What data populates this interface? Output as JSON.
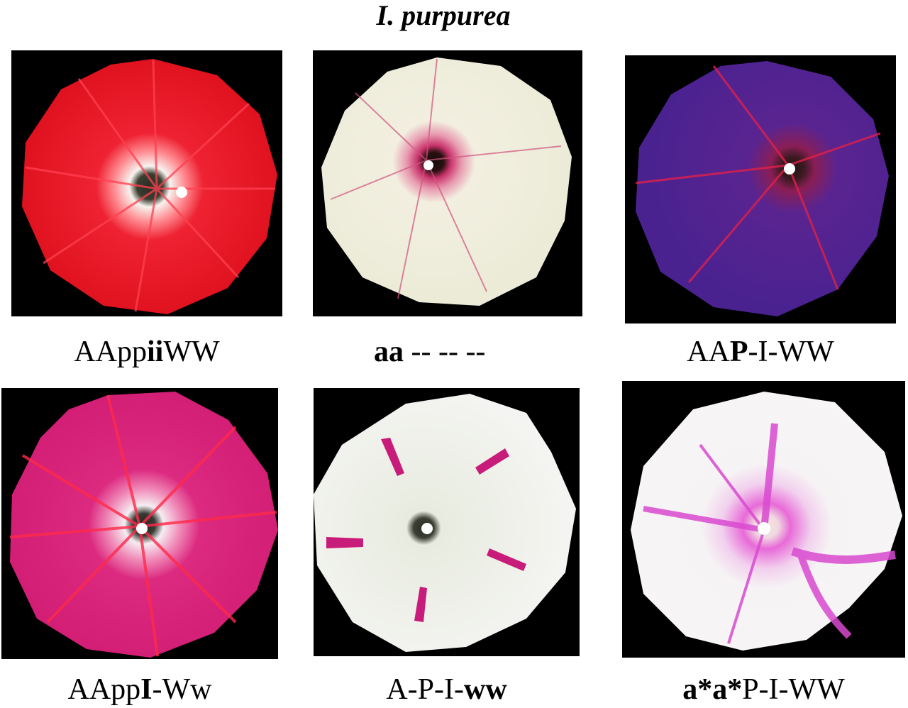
{
  "figure": {
    "title": "I. purpurea"
  },
  "panels": [
    {
      "caption_parts": [
        {
          "text": "AApp",
          "bold": false
        },
        {
          "text": "ii",
          "bold": true
        },
        {
          "text": "WW",
          "bold": false
        }
      ],
      "petal_color": "#e8172b",
      "throat_color": "#f7f3ef",
      "center_color": "#2b2e22",
      "ray_color": "#ff3a4a",
      "description_icon": "red-morning-glory-flower"
    },
    {
      "caption_parts": [
        {
          "text": "aa",
          "bold": true
        },
        {
          "text": " -- -- --",
          "bold": false
        }
      ],
      "petal_color": "#f2f1e3",
      "throat_color": "#c8326a",
      "center_color": "#1a0f0f",
      "ray_color": "#d05580",
      "description_icon": "white-morning-glory-flower"
    },
    {
      "caption_parts": [
        {
          "text": "AA",
          "bold": false
        },
        {
          "text": "P",
          "bold": true
        },
        {
          "text": "-I-WW",
          "bold": false
        }
      ],
      "petal_color": "#4b2390",
      "throat_color": "#8a1e55",
      "center_color": "#201515",
      "ray_color": "#e0204a",
      "description_icon": "purple-morning-glory-flower"
    },
    {
      "caption_parts": [
        {
          "text": "AApp",
          "bold": false
        },
        {
          "text": "I",
          "bold": true
        },
        {
          "text": "-Ww",
          "bold": false
        }
      ],
      "petal_color": "#d81f78",
      "throat_color": "#f5eef2",
      "center_color": "#232620",
      "ray_color": "#ff2a4a",
      "description_icon": "pink-morning-glory-flower"
    },
    {
      "caption_parts": [
        {
          "text": "A-P-I-",
          "bold": false
        },
        {
          "text": "ww",
          "bold": true
        }
      ],
      "petal_color": "#f4f4f2",
      "throat_color": "#ecefe6",
      "center_color": "#2a2e24",
      "ray_color": "#c81c7a",
      "description_icon": "white-flower-with-purple-marks"
    },
    {
      "caption_parts": [
        {
          "text": "a*a*",
          "bold": true
        },
        {
          "text": "P-I-WW",
          "bold": false
        }
      ],
      "petal_color": "#f6f3f4",
      "throat_color": "#e86ad8",
      "center_color": "#f3e8dc",
      "ray_color": "#d94ad0",
      "description_icon": "variegated-white-pink-flower"
    }
  ]
}
